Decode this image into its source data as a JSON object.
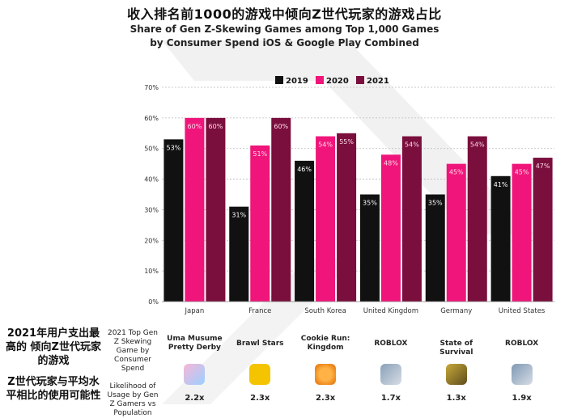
{
  "title_cn": "收入排名前1000的游戏中倾向Z世代玩家的游戏占比",
  "title_en_line1": "Share of Gen Z-Skewing Games among Top 1,000 Games",
  "title_en_line2": "by Consumer Spend iOS & Google Play Combined",
  "chart_data": {
    "type": "bar",
    "categories": [
      "Japan",
      "France",
      "South Korea",
      "United Kingdom",
      "Germany",
      "United States"
    ],
    "series": [
      {
        "name": "2019",
        "color": "#111111",
        "values": [
          53,
          31,
          46,
          35,
          35,
          41
        ],
        "labels": [
          "53%",
          "31%",
          "46%",
          "35%",
          "35%",
          "41%"
        ]
      },
      {
        "name": "2020",
        "color": "#f0157a",
        "values": [
          60,
          51,
          54,
          48,
          45,
          45
        ],
        "labels": [
          "60%",
          "51%",
          "54%",
          "48%",
          "45%",
          "45%"
        ]
      },
      {
        "name": "2021",
        "color": "#7a0e3c",
        "values": [
          60,
          60,
          55,
          54,
          54,
          47
        ],
        "labels": [
          "60%",
          "60%",
          "55%",
          "54%",
          "54%",
          "47%"
        ]
      }
    ],
    "yticks": [
      "0%",
      "10%",
      "20%",
      "30%",
      "40%",
      "50%",
      "60%",
      "70%"
    ],
    "ylim": [
      0,
      70
    ],
    "legend_position": "top-center",
    "grid": true
  },
  "row_top5": {
    "en_label": "2021 Top Gen Z Skewing Game by Consumer Spend",
    "cn_label": "2021年用户支出最高的 倾向Z世代玩家的游戏",
    "games": [
      "Uma Musume Pretty Derby",
      "Brawl Stars",
      "Cookie Run: Kingdom",
      "ROBLOX",
      "State of Survival",
      "ROBLOX"
    ]
  },
  "row_likelihood": {
    "en_label": "Likelihood of Usage by Gen Z Gamers vs Population",
    "cn_label": "Z世代玩家与平均水平相比的使用可能性",
    "values": [
      "2.2x",
      "2.3x",
      "2.3x",
      "1.7x",
      "1.3x",
      "1.9x"
    ]
  },
  "icons": [
    "uma-musume-icon",
    "brawl-stars-icon",
    "cookie-run-icon",
    "roblox-icon",
    "state-of-survival-icon",
    "roblox-icon"
  ]
}
